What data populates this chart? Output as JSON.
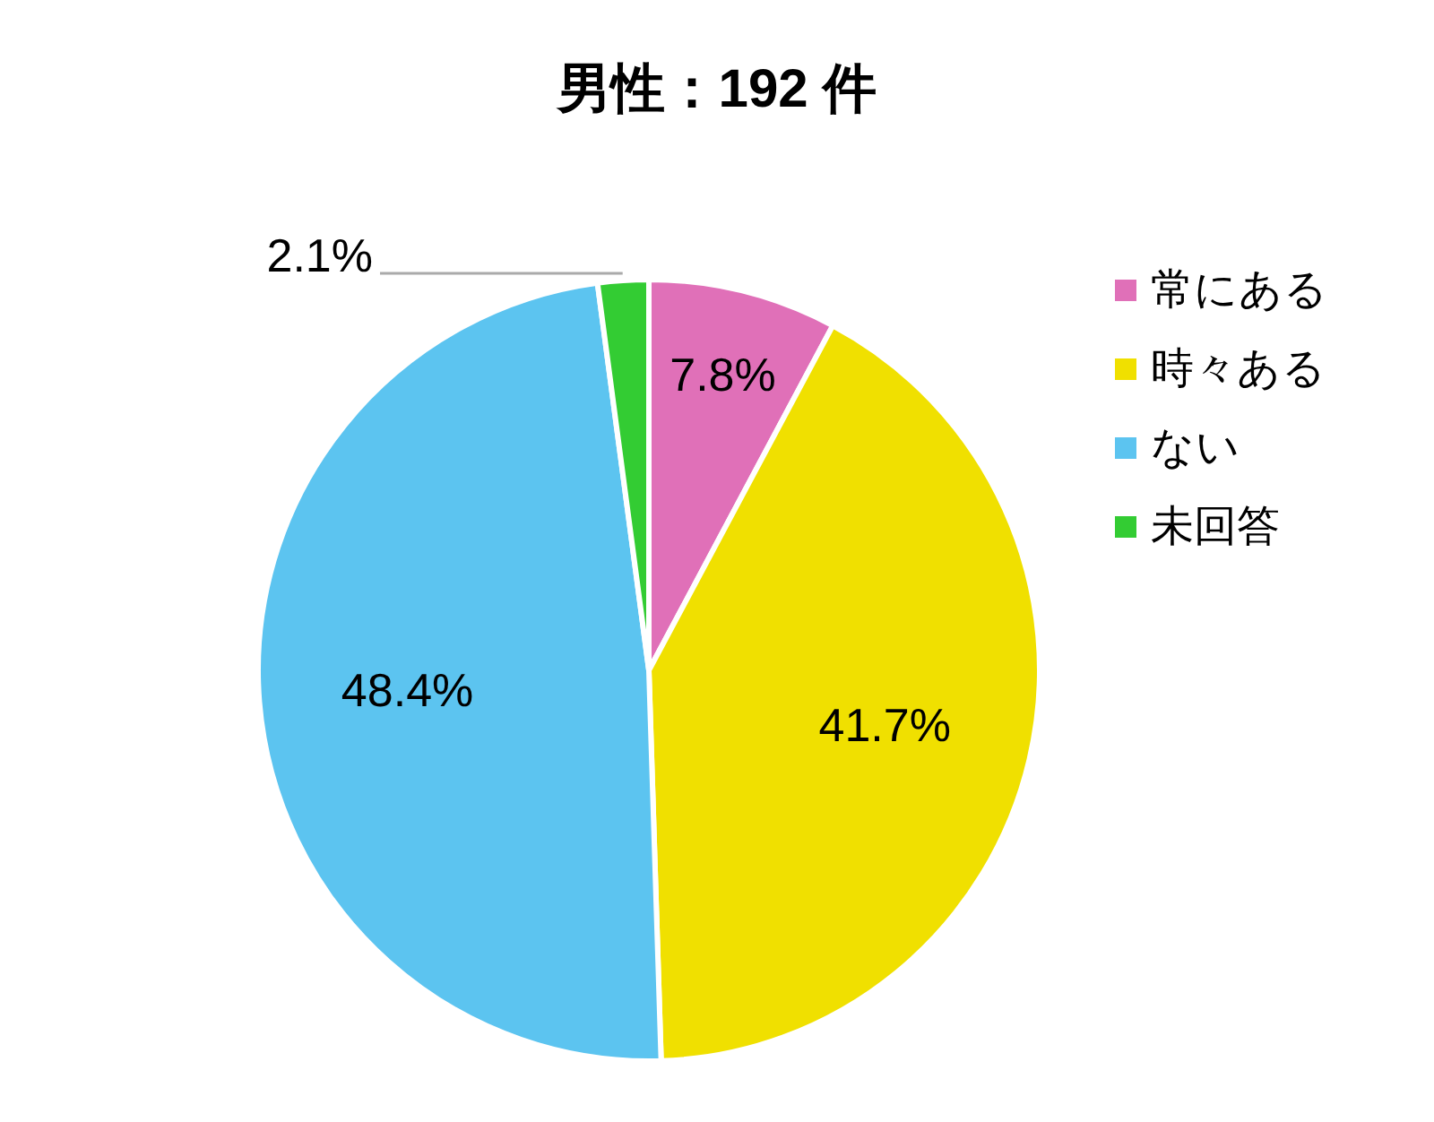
{
  "chart_data": {
    "type": "pie",
    "title": "男性：192 件",
    "categories": [
      "常にある",
      "時々ある",
      "ない",
      "未回答"
    ],
    "values": [
      7.8,
      41.7,
      48.4,
      2.1
    ],
    "colors": [
      "#e070b8",
      "#f0e000",
      "#5cc4f0",
      "#33cc33"
    ],
    "value_labels": [
      "7.8%",
      "41.7%",
      "48.4%",
      "2.1%"
    ],
    "legend": "right"
  }
}
